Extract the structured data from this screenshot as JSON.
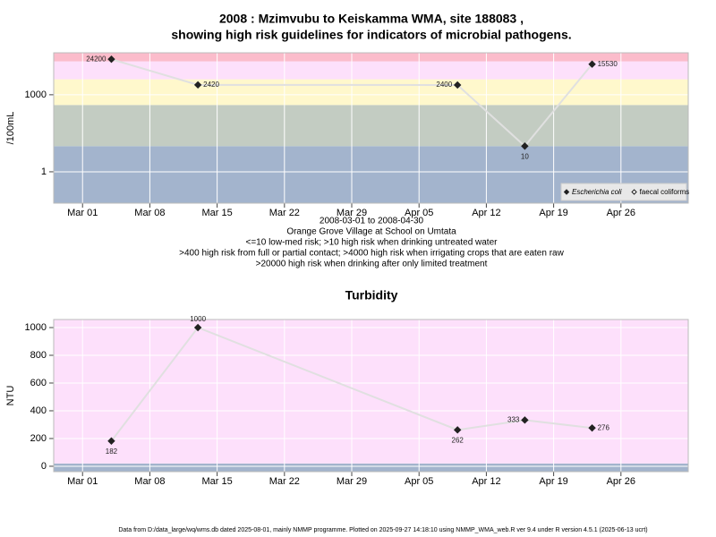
{
  "chart_data": [
    {
      "type": "line",
      "title": [
        "2008 : Mzimvubu to Keiskamma WMA, site 188083 ,",
        "showing high risk guidelines for indicators of microbial pathogens."
      ],
      "ylabel": "/100mL",
      "log_y": true,
      "x": [
        "2008-03-04",
        "2008-03-13",
        "2008-04-09",
        "2008-04-16",
        "2008-04-23"
      ],
      "xlim": [
        "2008-02-27",
        "2008-05-03"
      ],
      "xticks": [
        {
          "value": "2008-03-01",
          "label": "Mar 01"
        },
        {
          "value": "2008-03-08",
          "label": "Mar 08"
        },
        {
          "value": "2008-03-15",
          "label": "Mar 15"
        },
        {
          "value": "2008-03-22",
          "label": "Mar 22"
        },
        {
          "value": "2008-03-29",
          "label": "Mar 29"
        },
        {
          "value": "2008-04-05",
          "label": "Apr 05"
        },
        {
          "value": "2008-04-12",
          "label": "Apr 12"
        },
        {
          "value": "2008-04-19",
          "label": "Apr 19"
        },
        {
          "value": "2008-04-26",
          "label": "Apr 26"
        }
      ],
      "ylim": [
        0.06,
        43000
      ],
      "yticks": [
        1,
        1000
      ],
      "grid": true,
      "bands": [
        {
          "from": 0.06,
          "to": 10,
          "color": "#a3b4cd"
        },
        {
          "from": 10,
          "to": 400,
          "color": "#c3ccc2"
        },
        {
          "from": 400,
          "to": 4000,
          "color": "#fff8cc"
        },
        {
          "from": 4000,
          "to": 20000,
          "color": "#fde0fb"
        },
        {
          "from": 20000,
          "to": 43000,
          "color": "#fbbccb"
        }
      ],
      "line_color": "#e0e0e0",
      "series": [
        {
          "name": "Escherichia coli",
          "color": "#222222",
          "marker": "filled",
          "values": [
            24200,
            2420,
            2400,
            10,
            15530
          ]
        },
        {
          "name": "faecal coliforms",
          "color": "#222222",
          "marker": "open",
          "values": [
            null,
            null,
            null,
            null,
            null
          ]
        }
      ],
      "legend": "lower right",
      "notes": [
        "2008-03-01 to 2008-04-30",
        "Orange Grove Village at School on Umtata",
        "<=10 low-med risk; >10 high risk when drinking untreated water",
        ">400 high risk from full or partial contact; >4000 high risk when irrigating crops that are eaten raw",
        ">20000 high risk when drinking after only limited treatment"
      ]
    },
    {
      "type": "line",
      "title": "Turbidity",
      "ylabel": "NTU",
      "log_y": false,
      "x": [
        "2008-03-04",
        "2008-03-13",
        "2008-04-09",
        "2008-04-16",
        "2008-04-23"
      ],
      "xlim": [
        "2008-02-27",
        "2008-05-03"
      ],
      "xticks": [
        {
          "value": "2008-03-01",
          "label": "Mar 01"
        },
        {
          "value": "2008-03-08",
          "label": "Mar 08"
        },
        {
          "value": "2008-03-15",
          "label": "Mar 15"
        },
        {
          "value": "2008-03-22",
          "label": "Mar 22"
        },
        {
          "value": "2008-03-29",
          "label": "Mar 29"
        },
        {
          "value": "2008-04-05",
          "label": "Apr 05"
        },
        {
          "value": "2008-04-12",
          "label": "Apr 12"
        },
        {
          "value": "2008-04-19",
          "label": "Apr 19"
        },
        {
          "value": "2008-04-26",
          "label": "Apr 26"
        }
      ],
      "ylim": [
        -39,
        1058
      ],
      "yticks": [
        0,
        200,
        400,
        600,
        800,
        1000
      ],
      "grid": true,
      "bands": [
        {
          "from": -39,
          "to": 20,
          "color": "#a3b4cd"
        },
        {
          "from": 20,
          "to": 1058,
          "color": "#fde0fb"
        }
      ],
      "line_color": "#e0e0e0",
      "series": [
        {
          "color": "#222222",
          "marker": "filled",
          "values": [
            182,
            1000,
            262,
            333,
            276
          ]
        }
      ]
    }
  ],
  "footer": "Data from D:/data_large/wq/wms.db dated 2025-08-01, mainly NMMP programme. Plotted on 2025-09-27 14:18:10 using NMMP_WMA_web.R ver 9.4 under R version 4.5.1 (2025-06-13 ucrt)"
}
